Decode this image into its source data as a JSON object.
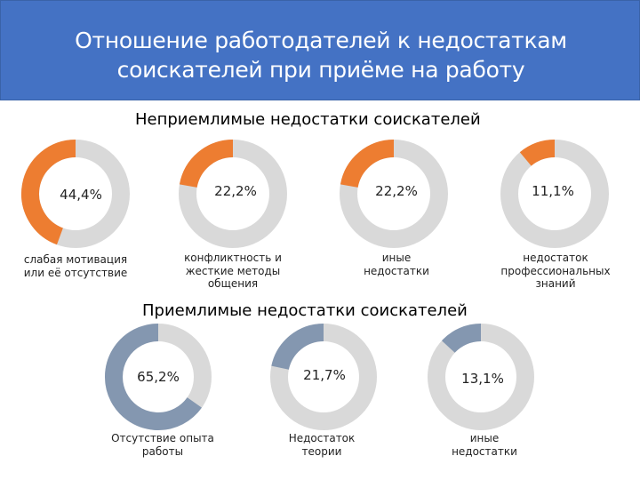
{
  "header": {
    "title_line1": "Отношение работодателей к недостаткам",
    "title_line2": "соискателей при приёме на работу"
  },
  "sections": {
    "unacceptable_title": "Неприемлимые недостатки соискателей",
    "acceptable_title": "Приемлимые недостатки соискателей"
  },
  "colors": {
    "ring": "#d9d9d9",
    "unacceptable_accent": "#ed7d31",
    "acceptable_accent": "#8497b0",
    "header_bg": "#4472c4"
  },
  "chart_data": [
    {
      "type": "pie",
      "title": "Неприемлимые недостатки соискателей",
      "categories": [
        "слабая мотивация или её отсутствие",
        "конфликтность и жесткие методы общения",
        "иные недостатки",
        "недостаток профессиональных знаний"
      ],
      "values": [
        44.4,
        22.2,
        22.2,
        11.1
      ],
      "labels": [
        "44,4%",
        "22,2%",
        "22,2%",
        "11,1%"
      ]
    },
    {
      "type": "pie",
      "title": "Приемлимые недостатки соискателей",
      "categories": [
        "Отсутствие опыта работы",
        "Недостаток теории",
        "иные недостатки"
      ],
      "values": [
        65.2,
        21.7,
        13.1
      ],
      "labels": [
        "65,2%",
        "21,7%",
        "13,1%"
      ]
    }
  ],
  "unacceptable": [
    {
      "label": "44,4%",
      "caption": "слабая мотивация или её отсутствие"
    },
    {
      "label": "22,2%",
      "caption": "конфликтность и жесткие методы общения"
    },
    {
      "label": "22,2%",
      "caption": "иные недостатки"
    },
    {
      "label": "11,1%",
      "caption": "недостаток профессиональных знаний"
    }
  ],
  "acceptable": [
    {
      "label": "65,2%",
      "caption": "Отсутствие опыта работы"
    },
    {
      "label": "21,7%",
      "caption": "Недостаток теории"
    },
    {
      "label": "13,1%",
      "caption": "иные недостатки"
    }
  ]
}
